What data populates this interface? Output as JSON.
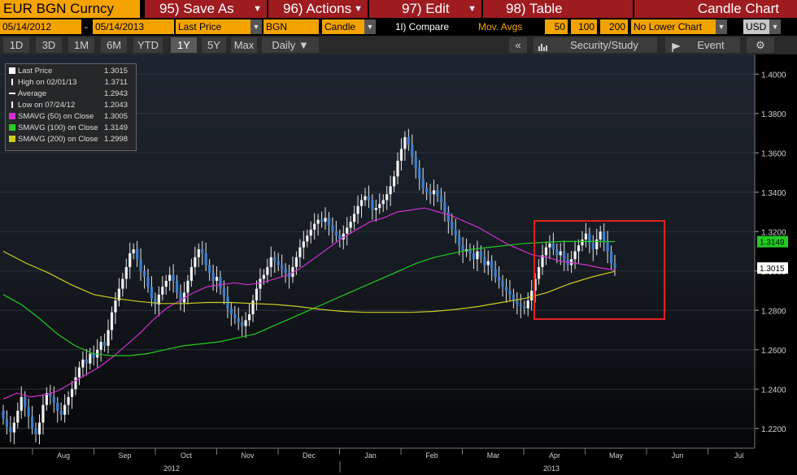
{
  "toolbar": {
    "ticker": "EUR BGN Curncy",
    "menus": [
      {
        "label": "95) Save As"
      },
      {
        "label": "96) Actions"
      },
      {
        "label": "97) Edit"
      },
      {
        "label": "98) Table"
      }
    ],
    "chart_title": "Candle Chart"
  },
  "params": {
    "start_date": "05/14/2012",
    "dash": "-",
    "end_date": "05/14/2013",
    "field": "Last Price",
    "source": "BGN",
    "style": "Candle",
    "compare": "1l) Compare",
    "mov_avgs_label": "Mov. Avgs",
    "ma1": "50",
    "ma2": "100",
    "ma3": "200",
    "lower_chart": "No Lower Chart",
    "currency": "USD"
  },
  "ranges": {
    "items": [
      "1D",
      "3D",
      "1M",
      "6M",
      "YTD",
      "1Y",
      "5Y",
      "Max"
    ],
    "selected": "1Y",
    "period": "Daily ▼",
    "collapse": "«",
    "security_study": "Security/Study",
    "event": "Event",
    "settings_icon": "gear-icon"
  },
  "legend": [
    {
      "label": "Last Price",
      "value": "1.3015",
      "color": "#ffffff"
    },
    {
      "label": "High on 02/01/13",
      "value": "1.3711",
      "color": "#ffffff"
    },
    {
      "label": "Average",
      "value": "1.2943",
      "color": "#ffffff"
    },
    {
      "label": "Low on 07/24/12",
      "value": "1.2043",
      "color": "#ffffff"
    },
    {
      "label": "SMAVG (50) on Close",
      "value": "1.3005",
      "color": "#d02fd0"
    },
    {
      "label": "SMAVG (100) on Close",
      "value": "1.3149",
      "color": "#22cc22"
    },
    {
      "label": "SMAVG (200) on Close",
      "value": "1.2998",
      "color": "#cccc22"
    }
  ],
  "chart_data": {
    "type": "line",
    "ylim": [
      1.21,
      1.41
    ],
    "y_ticks": [
      "1.2200",
      "1.2400",
      "1.2600",
      "1.2800",
      "1.3000",
      "1.3200",
      "1.3400",
      "1.3600",
      "1.3800",
      "1.4000"
    ],
    "x_labels": [
      "Aug",
      "Sep",
      "Oct",
      "Nov",
      "Dec",
      "Jan",
      "Feb",
      "Mar",
      "Apr",
      "May",
      "Jun",
      "Jul"
    ],
    "year_labels": [
      "2012",
      "2013"
    ],
    "price_tags": [
      {
        "text": "1.3149",
        "color": "#22cc22"
      },
      {
        "text": "1.3015",
        "color": "#ffffff"
      }
    ],
    "candles_close": [
      1.225,
      1.221,
      1.218,
      1.223,
      1.229,
      1.236,
      1.231,
      1.226,
      1.22,
      1.217,
      1.223,
      1.232,
      1.238,
      1.236,
      1.233,
      1.229,
      1.227,
      1.232,
      1.236,
      1.24,
      1.246,
      1.251,
      1.255,
      1.253,
      1.258,
      1.256,
      1.26,
      1.264,
      1.262,
      1.27,
      1.279,
      1.285,
      1.291,
      1.296,
      1.302,
      1.309,
      1.311,
      1.306,
      1.3,
      1.297,
      1.292,
      1.286,
      1.283,
      1.288,
      1.292,
      1.295,
      1.298,
      1.295,
      1.289,
      1.284,
      1.289,
      1.295,
      1.302,
      1.307,
      1.311,
      1.309,
      1.303,
      1.299,
      1.295,
      1.297,
      1.291,
      1.287,
      1.281,
      1.278,
      1.276,
      1.274,
      1.272,
      1.275,
      1.278,
      1.285,
      1.291,
      1.296,
      1.298,
      1.302,
      1.307,
      1.305,
      1.303,
      1.301,
      1.299,
      1.297,
      1.302,
      1.307,
      1.312,
      1.315,
      1.318,
      1.321,
      1.324,
      1.326,
      1.325,
      1.327,
      1.323,
      1.32,
      1.318,
      1.316,
      1.319,
      1.322,
      1.325,
      1.329,
      1.333,
      1.336,
      1.338,
      1.336,
      1.331,
      1.332,
      1.334,
      1.336,
      1.339,
      1.343,
      1.348,
      1.356,
      1.362,
      1.368,
      1.364,
      1.358,
      1.352,
      1.347,
      1.342,
      1.34,
      1.339,
      1.341,
      1.338,
      1.335,
      1.33,
      1.325,
      1.321,
      1.318,
      1.313,
      1.31,
      1.311,
      1.309,
      1.306,
      1.31,
      1.307,
      1.303,
      1.305,
      1.301,
      1.297,
      1.295,
      1.292,
      1.29,
      1.288,
      1.285,
      1.283,
      1.282,
      1.281,
      1.285,
      1.29,
      1.296,
      1.302,
      1.308,
      1.312,
      1.314,
      1.311,
      1.308,
      1.31,
      1.306,
      1.303,
      1.306,
      1.31,
      1.313,
      1.316,
      1.319,
      1.314,
      1.311,
      1.316,
      1.32,
      1.315,
      1.31,
      1.304,
      1.3015
    ],
    "series": [
      {
        "name": "SMAVG (50) on Close",
        "color": "#d02fd0",
        "values": [
          1.235,
          1.238,
          1.236,
          1.237,
          1.239,
          1.243,
          1.247,
          1.251,
          1.256,
          1.262,
          1.268,
          1.275,
          1.281,
          1.285,
          1.289,
          1.292,
          1.293,
          1.294,
          1.293,
          1.294,
          1.296,
          1.298,
          1.302,
          1.307,
          1.312,
          1.317,
          1.321,
          1.325,
          1.327,
          1.33,
          1.331,
          1.332,
          1.33,
          1.328,
          1.325,
          1.322,
          1.318,
          1.314,
          1.311,
          1.308,
          1.307,
          1.305,
          1.304,
          1.303,
          1.3015,
          1.3005
        ]
      },
      {
        "name": "SMAVG (100) on Close",
        "color": "#22cc22",
        "values": [
          1.288,
          1.283,
          1.276,
          1.268,
          1.262,
          1.258,
          1.257,
          1.257,
          1.258,
          1.26,
          1.262,
          1.263,
          1.264,
          1.266,
          1.268,
          1.272,
          1.276,
          1.28,
          1.284,
          1.288,
          1.292,
          1.296,
          1.3,
          1.304,
          1.307,
          1.309,
          1.311,
          1.312,
          1.313,
          1.314,
          1.3145,
          1.315,
          1.315,
          1.315,
          1.3149
        ]
      },
      {
        "name": "SMAVG (200) on Close",
        "color": "#cccc22",
        "values": [
          1.31,
          1.304,
          1.299,
          1.293,
          1.288,
          1.286,
          1.2845,
          1.2835,
          1.2835,
          1.284,
          1.284,
          1.2835,
          1.283,
          1.282,
          1.2805,
          1.2795,
          1.279,
          1.279,
          1.279,
          1.2795,
          1.2805,
          1.282,
          1.284,
          1.286,
          1.289,
          1.2935,
          1.297,
          1.2998
        ]
      }
    ],
    "annotation": "red-highlight-box"
  }
}
